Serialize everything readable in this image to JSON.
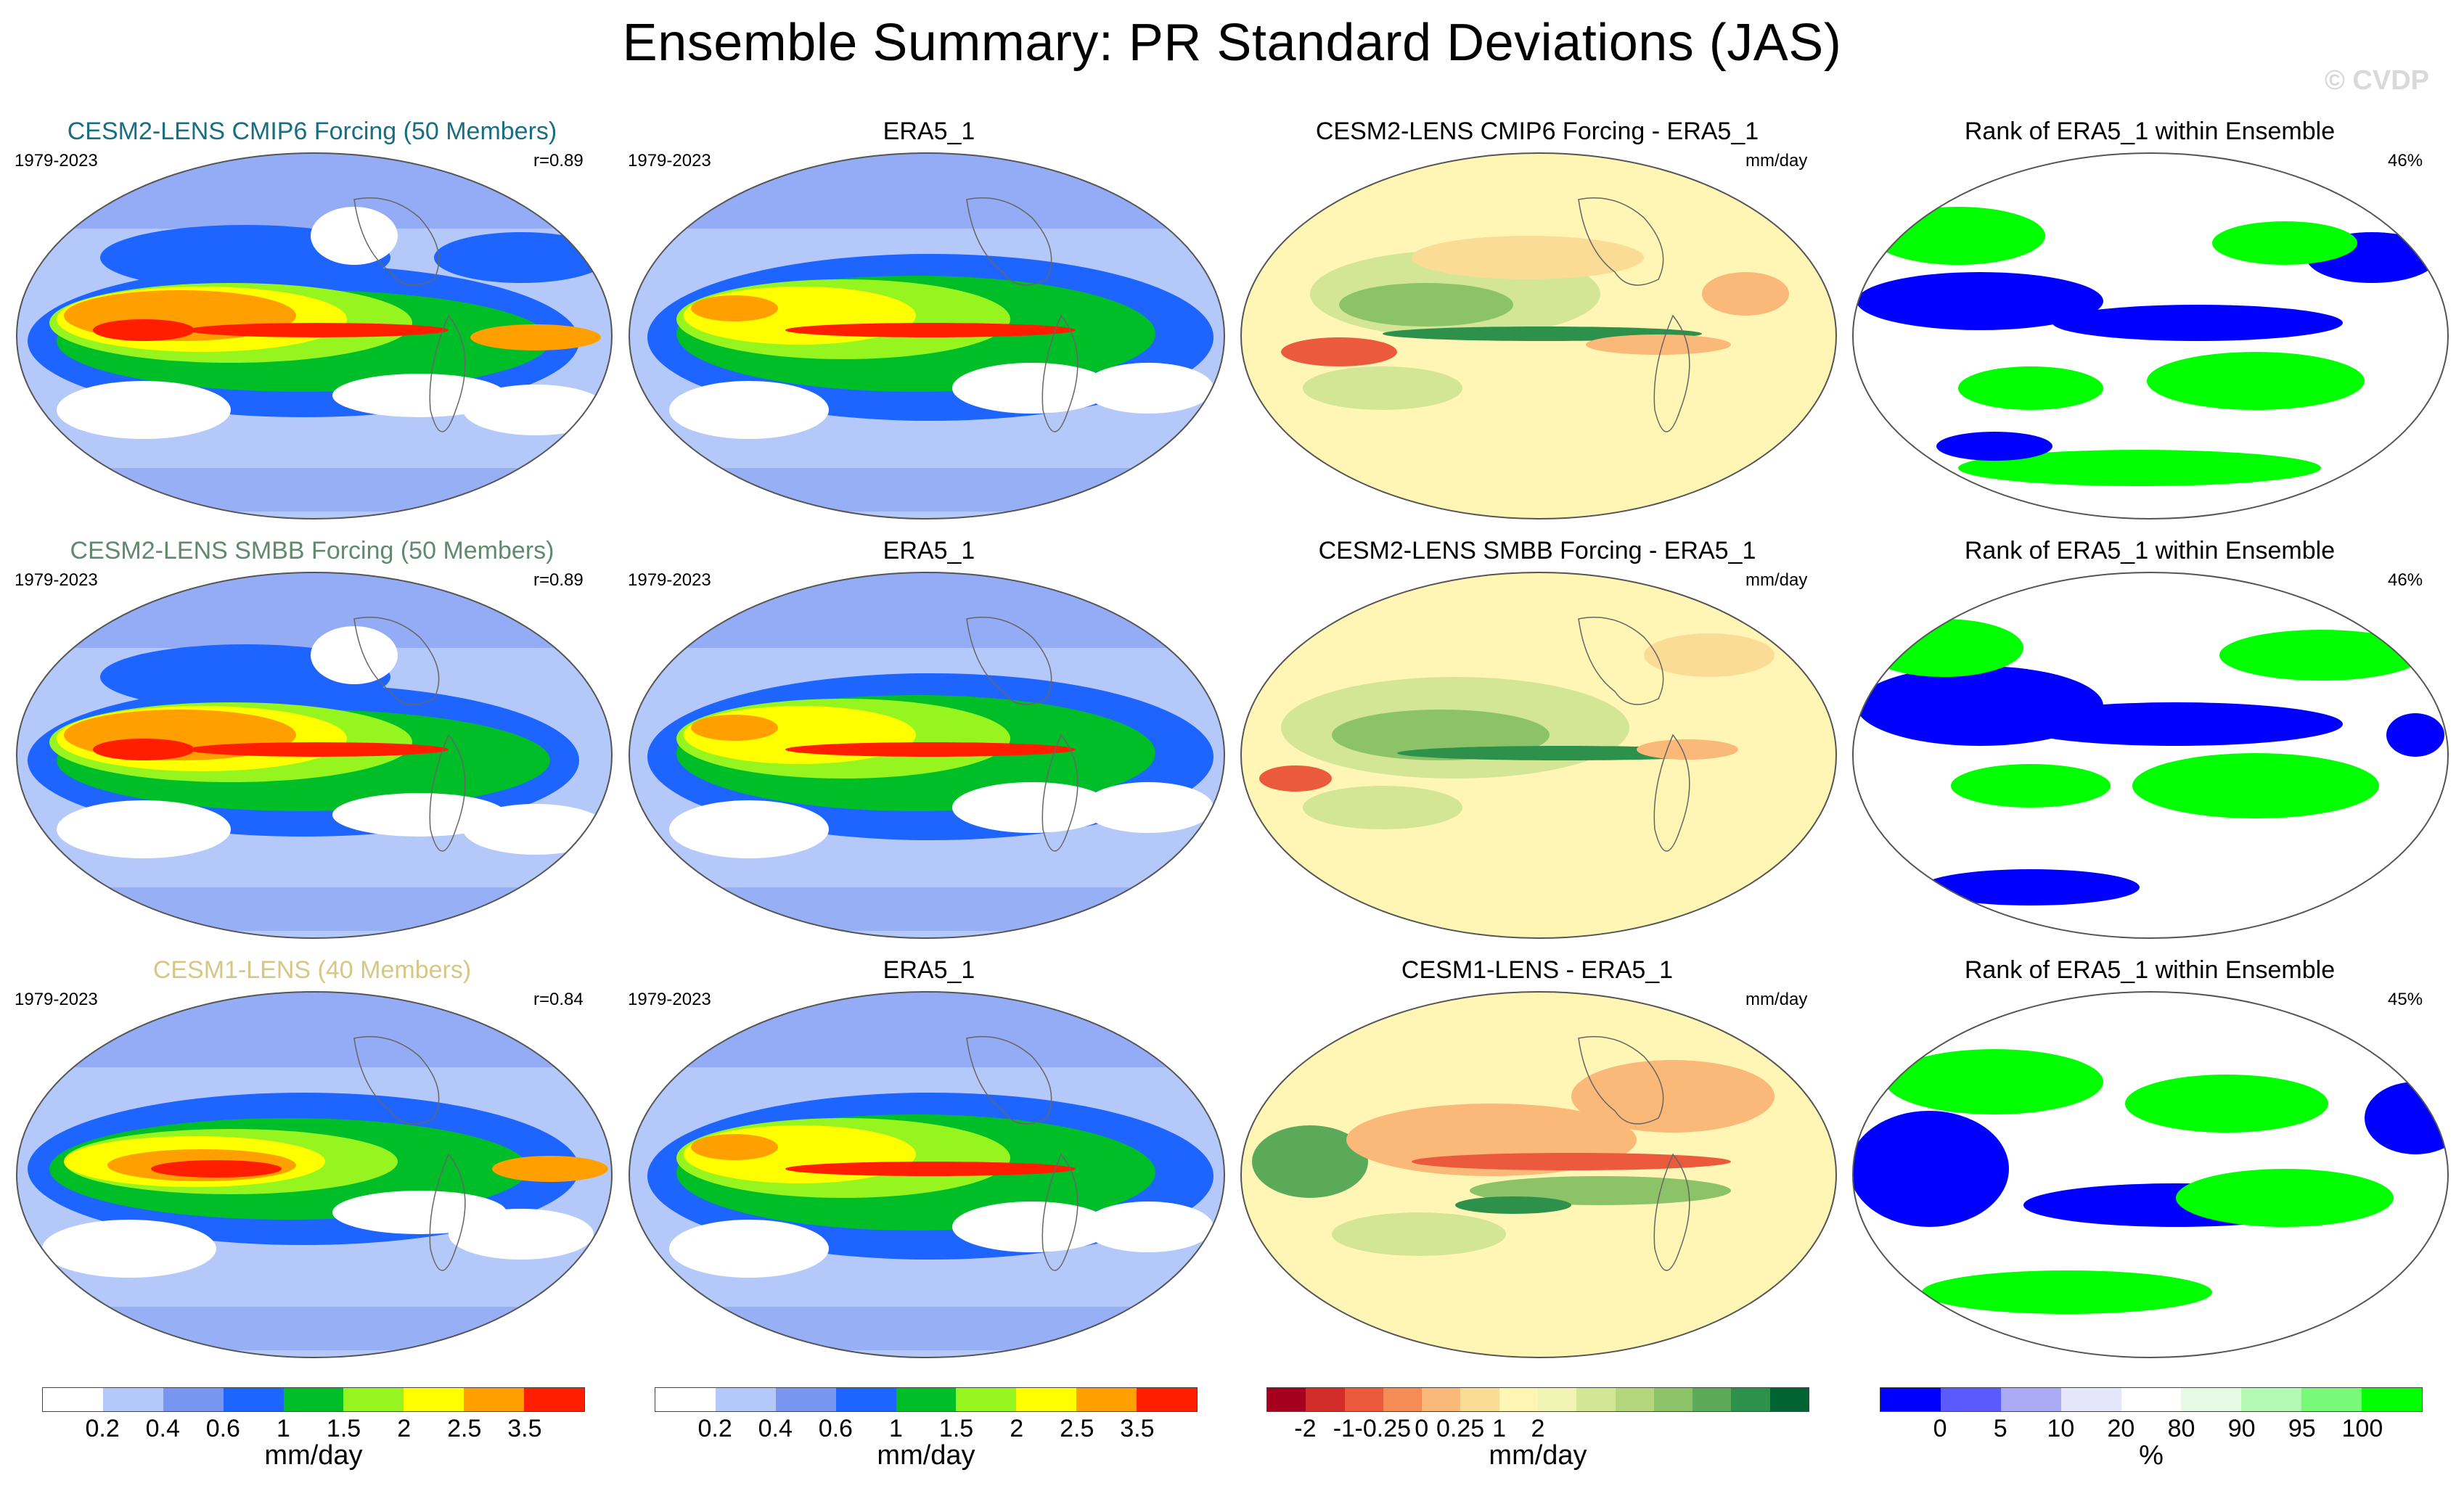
{
  "title": "Ensemble Summary: PR Standard Deviations (JAS)",
  "watermark": "© CVDP",
  "rows": [
    {
      "model": {
        "title": "CESM2-LENS CMIP6 Forcing (50 Members)",
        "color": "#1a6e82",
        "years": "1979-2023",
        "r": "r=0.89"
      },
      "obs": {
        "title": "ERA5_1",
        "years": "1979-2023"
      },
      "diff": {
        "title": "CESM2-LENS CMIP6 Forcing - ERA5_1",
        "units": "mm/day"
      },
      "rank": {
        "title": "Rank of ERA5_1 within Ensemble",
        "pct": "46%"
      }
    },
    {
      "model": {
        "title": "CESM2-LENS SMBB Forcing (50 Members)",
        "color": "#5f8a6e",
        "years": "1979-2023",
        "r": "r=0.89"
      },
      "obs": {
        "title": "ERA5_1",
        "years": "1979-2023"
      },
      "diff": {
        "title": "CESM2-LENS SMBB Forcing - ERA5_1",
        "units": "mm/day"
      },
      "rank": {
        "title": "Rank of ERA5_1 within Ensemble",
        "pct": "46%"
      }
    },
    {
      "model": {
        "title": "CESM1-LENS (40 Members)",
        "color": "#d6c785",
        "years": "1979-2023",
        "r": "r=0.84"
      },
      "obs": {
        "title": "ERA5_1",
        "years": "1979-2023"
      },
      "diff": {
        "title": "CESM1-LENS - ERA5_1",
        "units": "mm/day"
      },
      "rank": {
        "title": "Rank of ERA5_1 within Ensemble",
        "pct": "45%"
      }
    }
  ],
  "colorbars": {
    "std": {
      "colors": [
        "#ffffff",
        "#b4c8fa",
        "#7896f0",
        "#1e64ff",
        "#00be28",
        "#96f51e",
        "#ffff00",
        "#ffa000",
        "#ff1e00"
      ],
      "ticks": [
        "0.2",
        "0.4",
        "0.6",
        "1",
        "1.5",
        "2",
        "2.5",
        "3.5"
      ],
      "units": "mm/day"
    },
    "diff": {
      "colors": [
        "#a5001e",
        "#d22d28",
        "#eb5a3c",
        "#f58c55",
        "#fab978",
        "#fadc96",
        "#fff5b4",
        "#f0f5b4",
        "#d2e696",
        "#b4d77d",
        "#8cc369",
        "#5aaa5a",
        "#2d914b",
        "#006432"
      ],
      "ticks": [
        "-2",
        "-1",
        "-0.25",
        "0",
        "0.25",
        "1",
        "2"
      ],
      "units": "mm/day"
    },
    "rank": {
      "colors": [
        "#0000ff",
        "#5a5aff",
        "#aaaaf5",
        "#e6e6fa",
        "#ffffff",
        "#e6fae6",
        "#b4fab4",
        "#78fa78",
        "#00ff00"
      ],
      "ticks": [
        "0",
        "5",
        "10",
        "20",
        "80",
        "90",
        "95",
        "100"
      ],
      "units": "%"
    }
  }
}
